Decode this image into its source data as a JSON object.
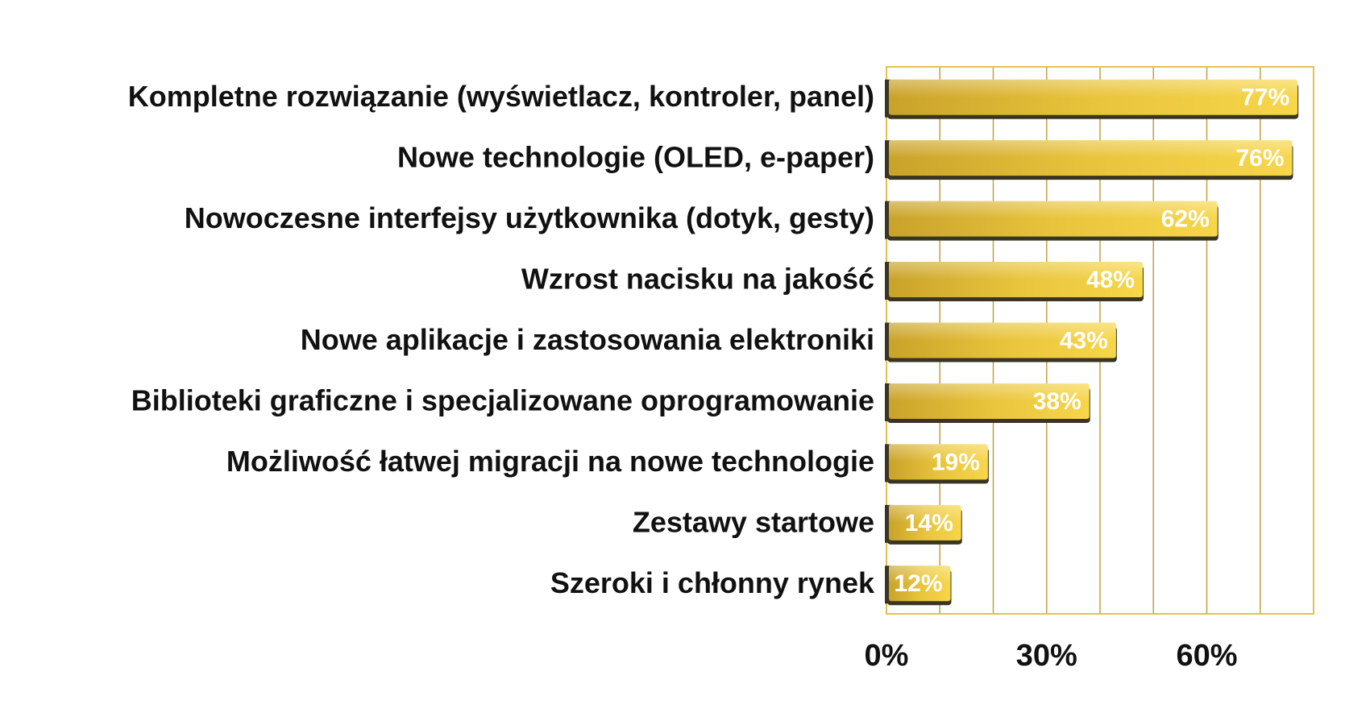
{
  "chart_data": {
    "type": "bar",
    "orientation": "horizontal",
    "title": "",
    "xlabel": "",
    "ylabel": "",
    "categories": [
      "Kompletne rozwiązanie (wyświetlacz, kontroler, panel)",
      "Nowe technologie (OLED, e-paper)",
      "Nowoczesne interfejsy użytkownika (dotyk, gesty)",
      "Wzrost nacisku na jakość",
      "Nowe aplikacje i zastosowania elektroniki",
      "Biblioteki graficzne i specjalizowane oprogramowanie",
      "Możliwość łatwej migracji na nowe technologie",
      "Zestawy startowe",
      "Szeroki i chłonny rynek"
    ],
    "values": [
      77,
      76,
      62,
      48,
      43,
      38,
      19,
      14,
      12
    ],
    "value_labels": [
      "77%",
      "76%",
      "62%",
      "48%",
      "43%",
      "38%",
      "19%",
      "14%",
      "12%"
    ],
    "xlim": [
      0,
      80
    ],
    "ticks": [
      0,
      30,
      60
    ],
    "tick_labels": [
      "0%",
      "30%",
      "60%"
    ],
    "grid": true,
    "legend": "none",
    "colors": {
      "bar_light": "#f7d64a",
      "bar_mid": "#e8c43c",
      "bar_dark": "#c9a22a",
      "bar_shadow": "#3a3522",
      "grid_line": "#c2a040",
      "plot_border": "#e3c24a",
      "value_text": "#ffffff",
      "label_text": "#111111"
    }
  }
}
